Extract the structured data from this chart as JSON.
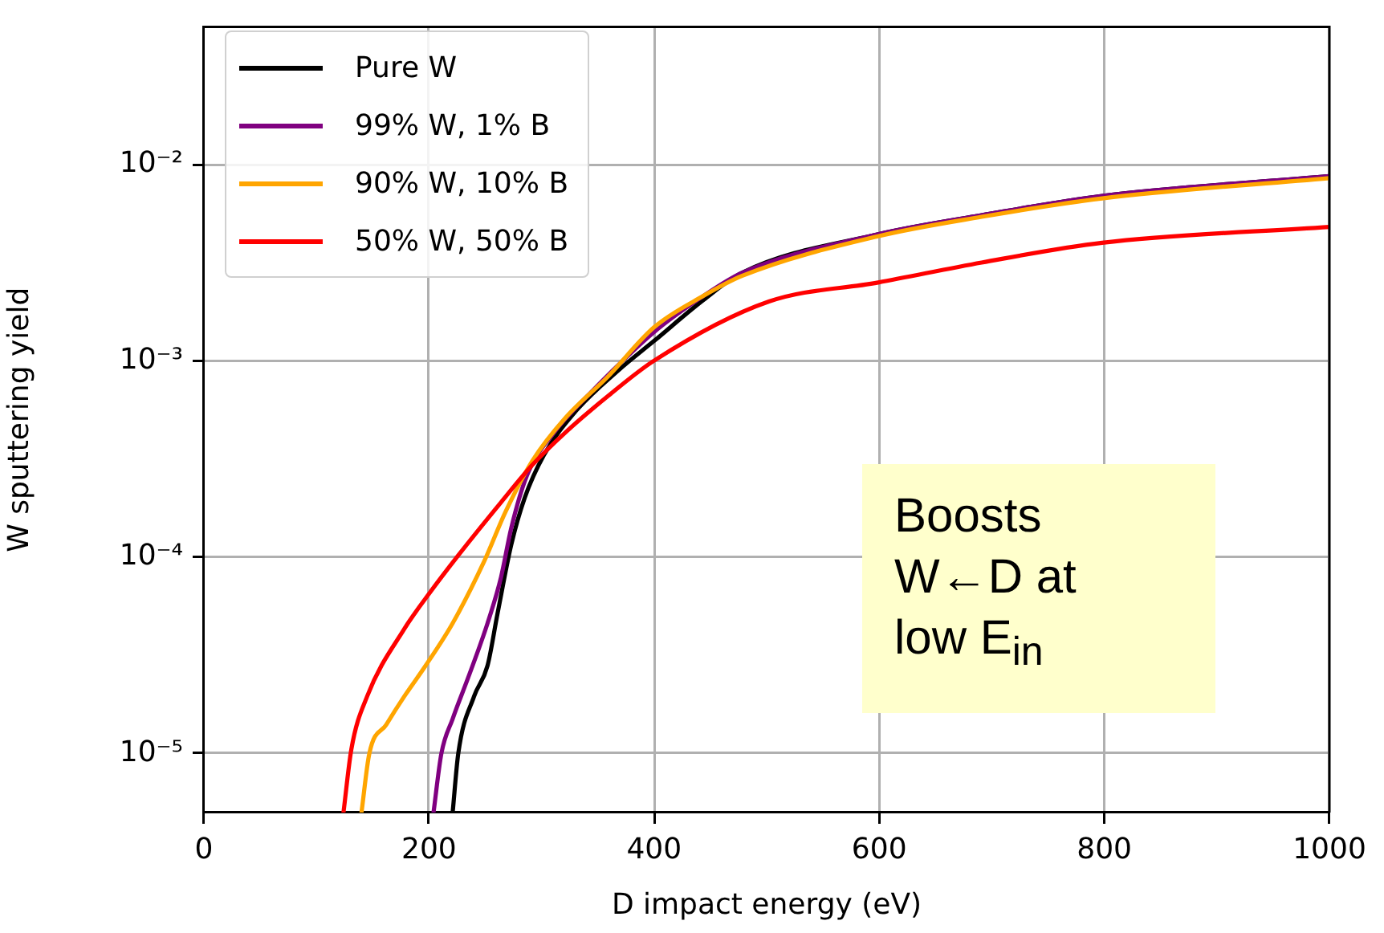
{
  "chart_data": {
    "type": "line",
    "xlabel": "D impact energy (eV)",
    "ylabel": "W sputtering yield",
    "xlim": [
      0,
      1000
    ],
    "xticks": [
      0,
      200,
      400,
      600,
      800,
      1000
    ],
    "ylim": [
      5e-06,
      0.05
    ],
    "yticks": [
      {
        "value": 1e-05,
        "label": "10⁻⁵"
      },
      {
        "value": 0.0001,
        "label": "10⁻⁴"
      },
      {
        "value": 0.001,
        "label": "10⁻³"
      },
      {
        "value": 0.01,
        "label": "10⁻²"
      }
    ],
    "log": "y",
    "grid": true,
    "legend": "top left",
    "marker": "none",
    "line_style": "solid",
    "annotations": [
      "Boosts W←D at low E$_{in}$"
    ],
    "series": [
      {
        "name": "Pure W",
        "color": "#000000",
        "x": [
          221,
          226,
          240,
          252,
          261,
          273,
          285,
          302,
          330,
          368,
          400,
          444,
          478,
          599,
          691,
          798,
          1000
        ],
        "values": [
          5e-06,
          1e-05,
          1.95e-05,
          2.8e-05,
          5.2e-05,
          0.000115,
          0.0002,
          0.00033,
          0.00055,
          0.00089,
          0.00126,
          0.00204,
          0.0028,
          0.0044,
          0.0055,
          0.0069,
          0.0087
        ]
      },
      {
        "name": "99% W, 1% B",
        "color": "#800080",
        "x": [
          204,
          211,
          221,
          235,
          252,
          264,
          273,
          287,
          311,
          344,
          400,
          444,
          478,
          599,
          691,
          798,
          1000
        ],
        "values": [
          5e-06,
          1e-05,
          1.5e-05,
          2.45e-05,
          4.6e-05,
          7.9e-05,
          0.00014,
          0.00026,
          0.00043,
          0.00069,
          0.0014,
          0.00214,
          0.0028,
          0.0044,
          0.0055,
          0.0069,
          0.0087
        ]
      },
      {
        "name": "90% W, 10% B",
        "color": "#ffa500",
        "x": [
          140,
          147,
          162,
          178,
          197,
          221,
          249,
          268,
          292,
          321,
          359,
          400,
          444,
          478,
          599,
          691,
          798,
          1000
        ],
        "values": [
          5e-06,
          1e-05,
          1.4e-05,
          1.95e-05,
          2.8e-05,
          4.6e-05,
          9.5e-05,
          0.00017,
          0.00031,
          0.00051,
          0.00083,
          0.00148,
          0.00214,
          0.0027,
          0.0043,
          0.0054,
          0.0067,
          0.0085
        ]
      },
      {
        "name": "50% W, 50% B",
        "color": "#ff0000",
        "x": [
          124,
          131,
          145,
          178,
          200,
          226,
          264,
          292,
          321,
          359,
          400,
          502,
          599,
          691,
          798,
          1000
        ],
        "values": [
          5e-06,
          1.05e-05,
          1.95e-05,
          4.3e-05,
          6.5e-05,
          0.000102,
          0.00019,
          0.000295,
          0.00043,
          0.00066,
          0.001,
          0.002,
          0.0025,
          0.00316,
          0.00398,
          0.0048
        ]
      }
    ]
  }
}
